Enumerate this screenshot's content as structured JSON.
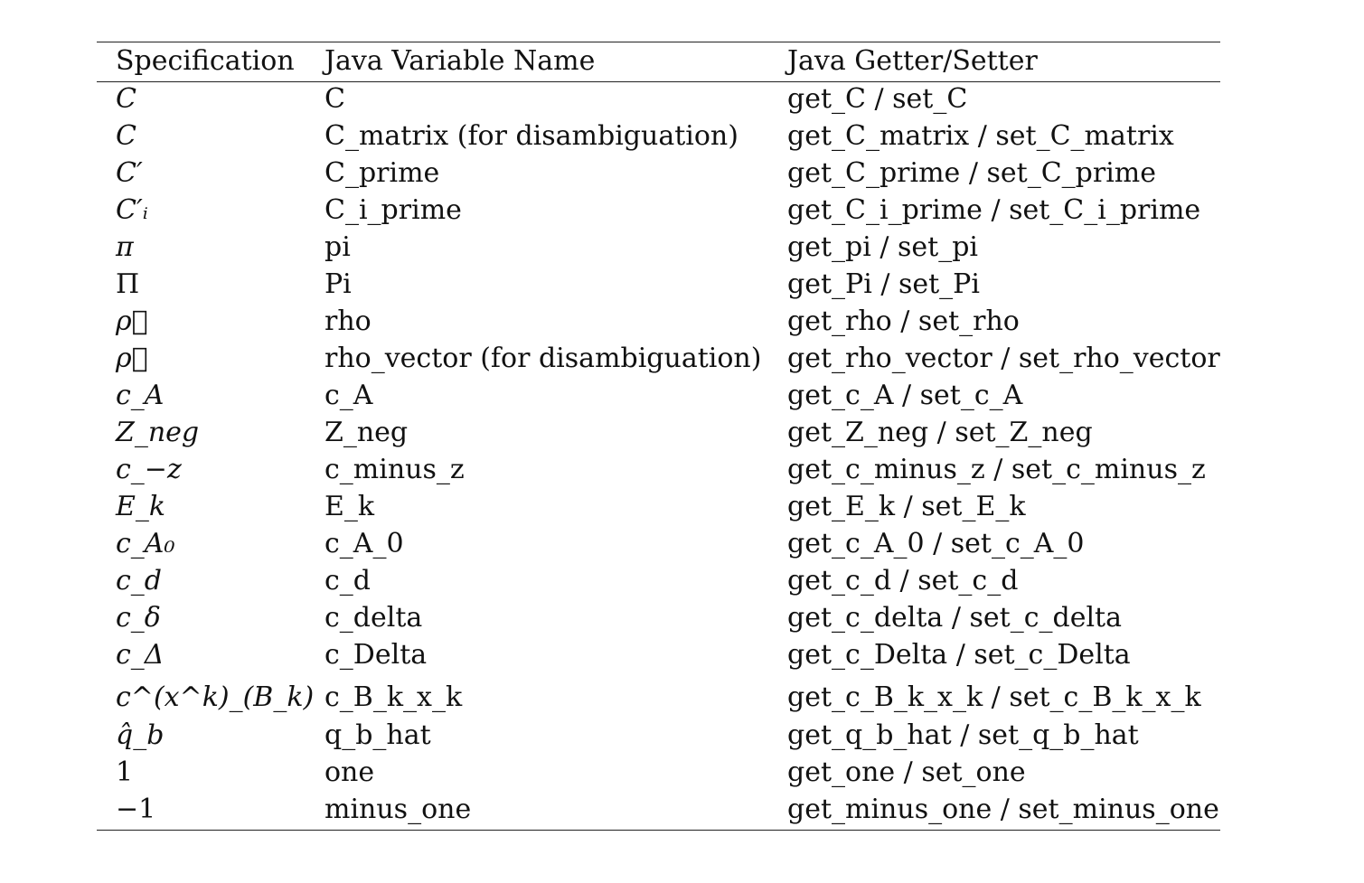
{
  "table": {
    "headers": {
      "specification": "Specification",
      "java_variable_name": "Java Variable Name",
      "java_getter_setter": "Java Getter/Setter"
    },
    "rows": [
      {
        "spec": "C",
        "var": "C",
        "getset": "get_C / set_C"
      },
      {
        "spec": "C",
        "var": "C_matrix (for disambiguation)",
        "getset": "get_C_matrix / set_C_matrix"
      },
      {
        "spec": "C′",
        "var": "C_prime",
        "getset": "get_C_prime / set_C_prime"
      },
      {
        "spec": "C′ᵢ",
        "var": "C_i_prime",
        "getset": "get_C_i_prime / set_C_i_prime"
      },
      {
        "spec": "π",
        "var": "pi",
        "getset": "get_pi / set_pi"
      },
      {
        "spec": "Π",
        "var": "Pi",
        "getset": "get_Pi / set_Pi"
      },
      {
        "spec": "ρ⃗",
        "var": "rho",
        "getset": "get_rho / set_rho"
      },
      {
        "spec": "ρ⃗",
        "var": "rho_vector (for disambiguation)",
        "getset": "get_rho_vector / set_rho_vector"
      },
      {
        "spec": "c_A",
        "var": "c_A",
        "getset": "get_c_A / set_c_A"
      },
      {
        "spec": "Z_neg",
        "var": "Z_neg",
        "getset": "get_Z_neg / set_Z_neg"
      },
      {
        "spec": "c_−z",
        "var": "c_minus_z",
        "getset": "get_c_minus_z / set_c_minus_z"
      },
      {
        "spec": "E_k",
        "var": "E_k",
        "getset": "get_E_k / set_E_k"
      },
      {
        "spec": "c_A₀",
        "var": "c_A_0",
        "getset": "get_c_A_0 / set_c_A_0"
      },
      {
        "spec": "c_d",
        "var": "c_d",
        "getset": "get_c_d / set_c_d"
      },
      {
        "spec": "c_δ",
        "var": "c_delta",
        "getset": "get_c_delta / set_c_delta"
      },
      {
        "spec": "c_Δ",
        "var": "c_Delta",
        "getset": "get_c_Delta / set_c_Delta"
      },
      {
        "spec": "c^(x^k)_(B_k)",
        "var": "c_B_k_x_k",
        "getset": "get_c_B_k_x_k / set_c_B_k_x_k"
      },
      {
        "spec": "q̂_b",
        "var": "q_b_hat",
        "getset": "get_q_b_hat / set_q_b_hat"
      },
      {
        "spec": "1",
        "var": "one",
        "getset": "get_one / set_one"
      },
      {
        "spec": "−1",
        "var": "minus_one",
        "getset": "get_minus_one / set_minus_one"
      }
    ]
  }
}
